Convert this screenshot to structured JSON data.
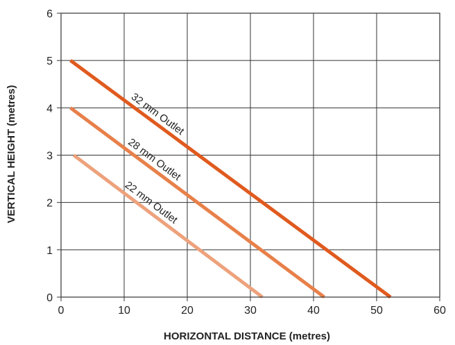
{
  "chart_data": {
    "type": "line",
    "title": "",
    "xlabel": "HORIZONTAL DISTANCE (metres)",
    "ylabel": "VERTICAL HEIGHT (metres)",
    "xlim": [
      0,
      60
    ],
    "ylim": [
      0,
      6
    ],
    "x_ticks": [
      0,
      10,
      20,
      30,
      40,
      50,
      60
    ],
    "y_ticks": [
      0,
      1,
      2,
      3,
      4,
      5,
      6
    ],
    "x_tick_labels": [
      "0",
      "10",
      "20",
      "30",
      "40",
      "50",
      "60"
    ],
    "y_tick_labels": [
      "0",
      "1",
      "2",
      "3",
      "4",
      "5",
      "6"
    ],
    "grid": true,
    "legend": "none",
    "series": [
      {
        "name": "32 mm Outlet",
        "color": "#e05a1e",
        "points": [
          [
            1.5,
            5
          ],
          [
            52.2,
            0
          ]
        ]
      },
      {
        "name": "28 mm Outlet",
        "color": "#e8804a",
        "points": [
          [
            1.5,
            4
          ],
          [
            41.7,
            0
          ]
        ]
      },
      {
        "name": "22 mm Outlet",
        "color": "#eda27c",
        "points": [
          [
            2,
            3
          ],
          [
            31.9,
            0
          ]
        ]
      }
    ]
  }
}
